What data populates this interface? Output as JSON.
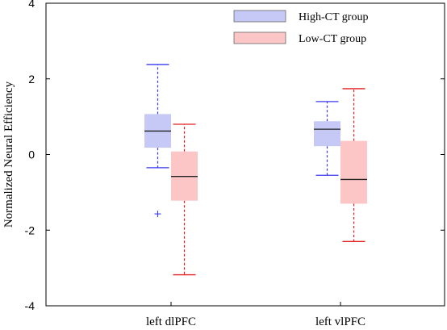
{
  "chart_data": {
    "type": "boxplot",
    "ylabel": "Normalized Neural Efficiency",
    "ylim": [
      -4,
      4
    ],
    "yticks": [
      -4,
      -2,
      0,
      2,
      4
    ],
    "ytick_labels": [
      "-4",
      "-2",
      "0",
      "2",
      "4"
    ],
    "categories": [
      "left dlPFC",
      "left vlPFC"
    ],
    "legend_position": "top-right",
    "series": [
      {
        "name": "High-CT group",
        "fill": "#c6c9f6",
        "edge": "#3a3af0",
        "boxes": [
          {
            "whisker_low": -0.35,
            "q1": 0.18,
            "median": 0.62,
            "q3": 1.07,
            "whisker_high": 2.38,
            "outliers": [
              -1.57
            ]
          },
          {
            "whisker_low": -0.55,
            "q1": 0.22,
            "median": 0.67,
            "q3": 0.88,
            "whisker_high": 1.4,
            "outliers": []
          }
        ]
      },
      {
        "name": "Low-CT group",
        "fill": "#fcc6c6",
        "edge": "#e02020",
        "boxes": [
          {
            "whisker_low": -3.18,
            "q1": -1.22,
            "median": -0.58,
            "q3": 0.08,
            "whisker_high": 0.8,
            "outliers": []
          },
          {
            "whisker_low": -2.3,
            "q1": -1.3,
            "median": -0.66,
            "q3": 0.36,
            "whisker_high": 1.74,
            "outliers": []
          }
        ]
      }
    ]
  }
}
